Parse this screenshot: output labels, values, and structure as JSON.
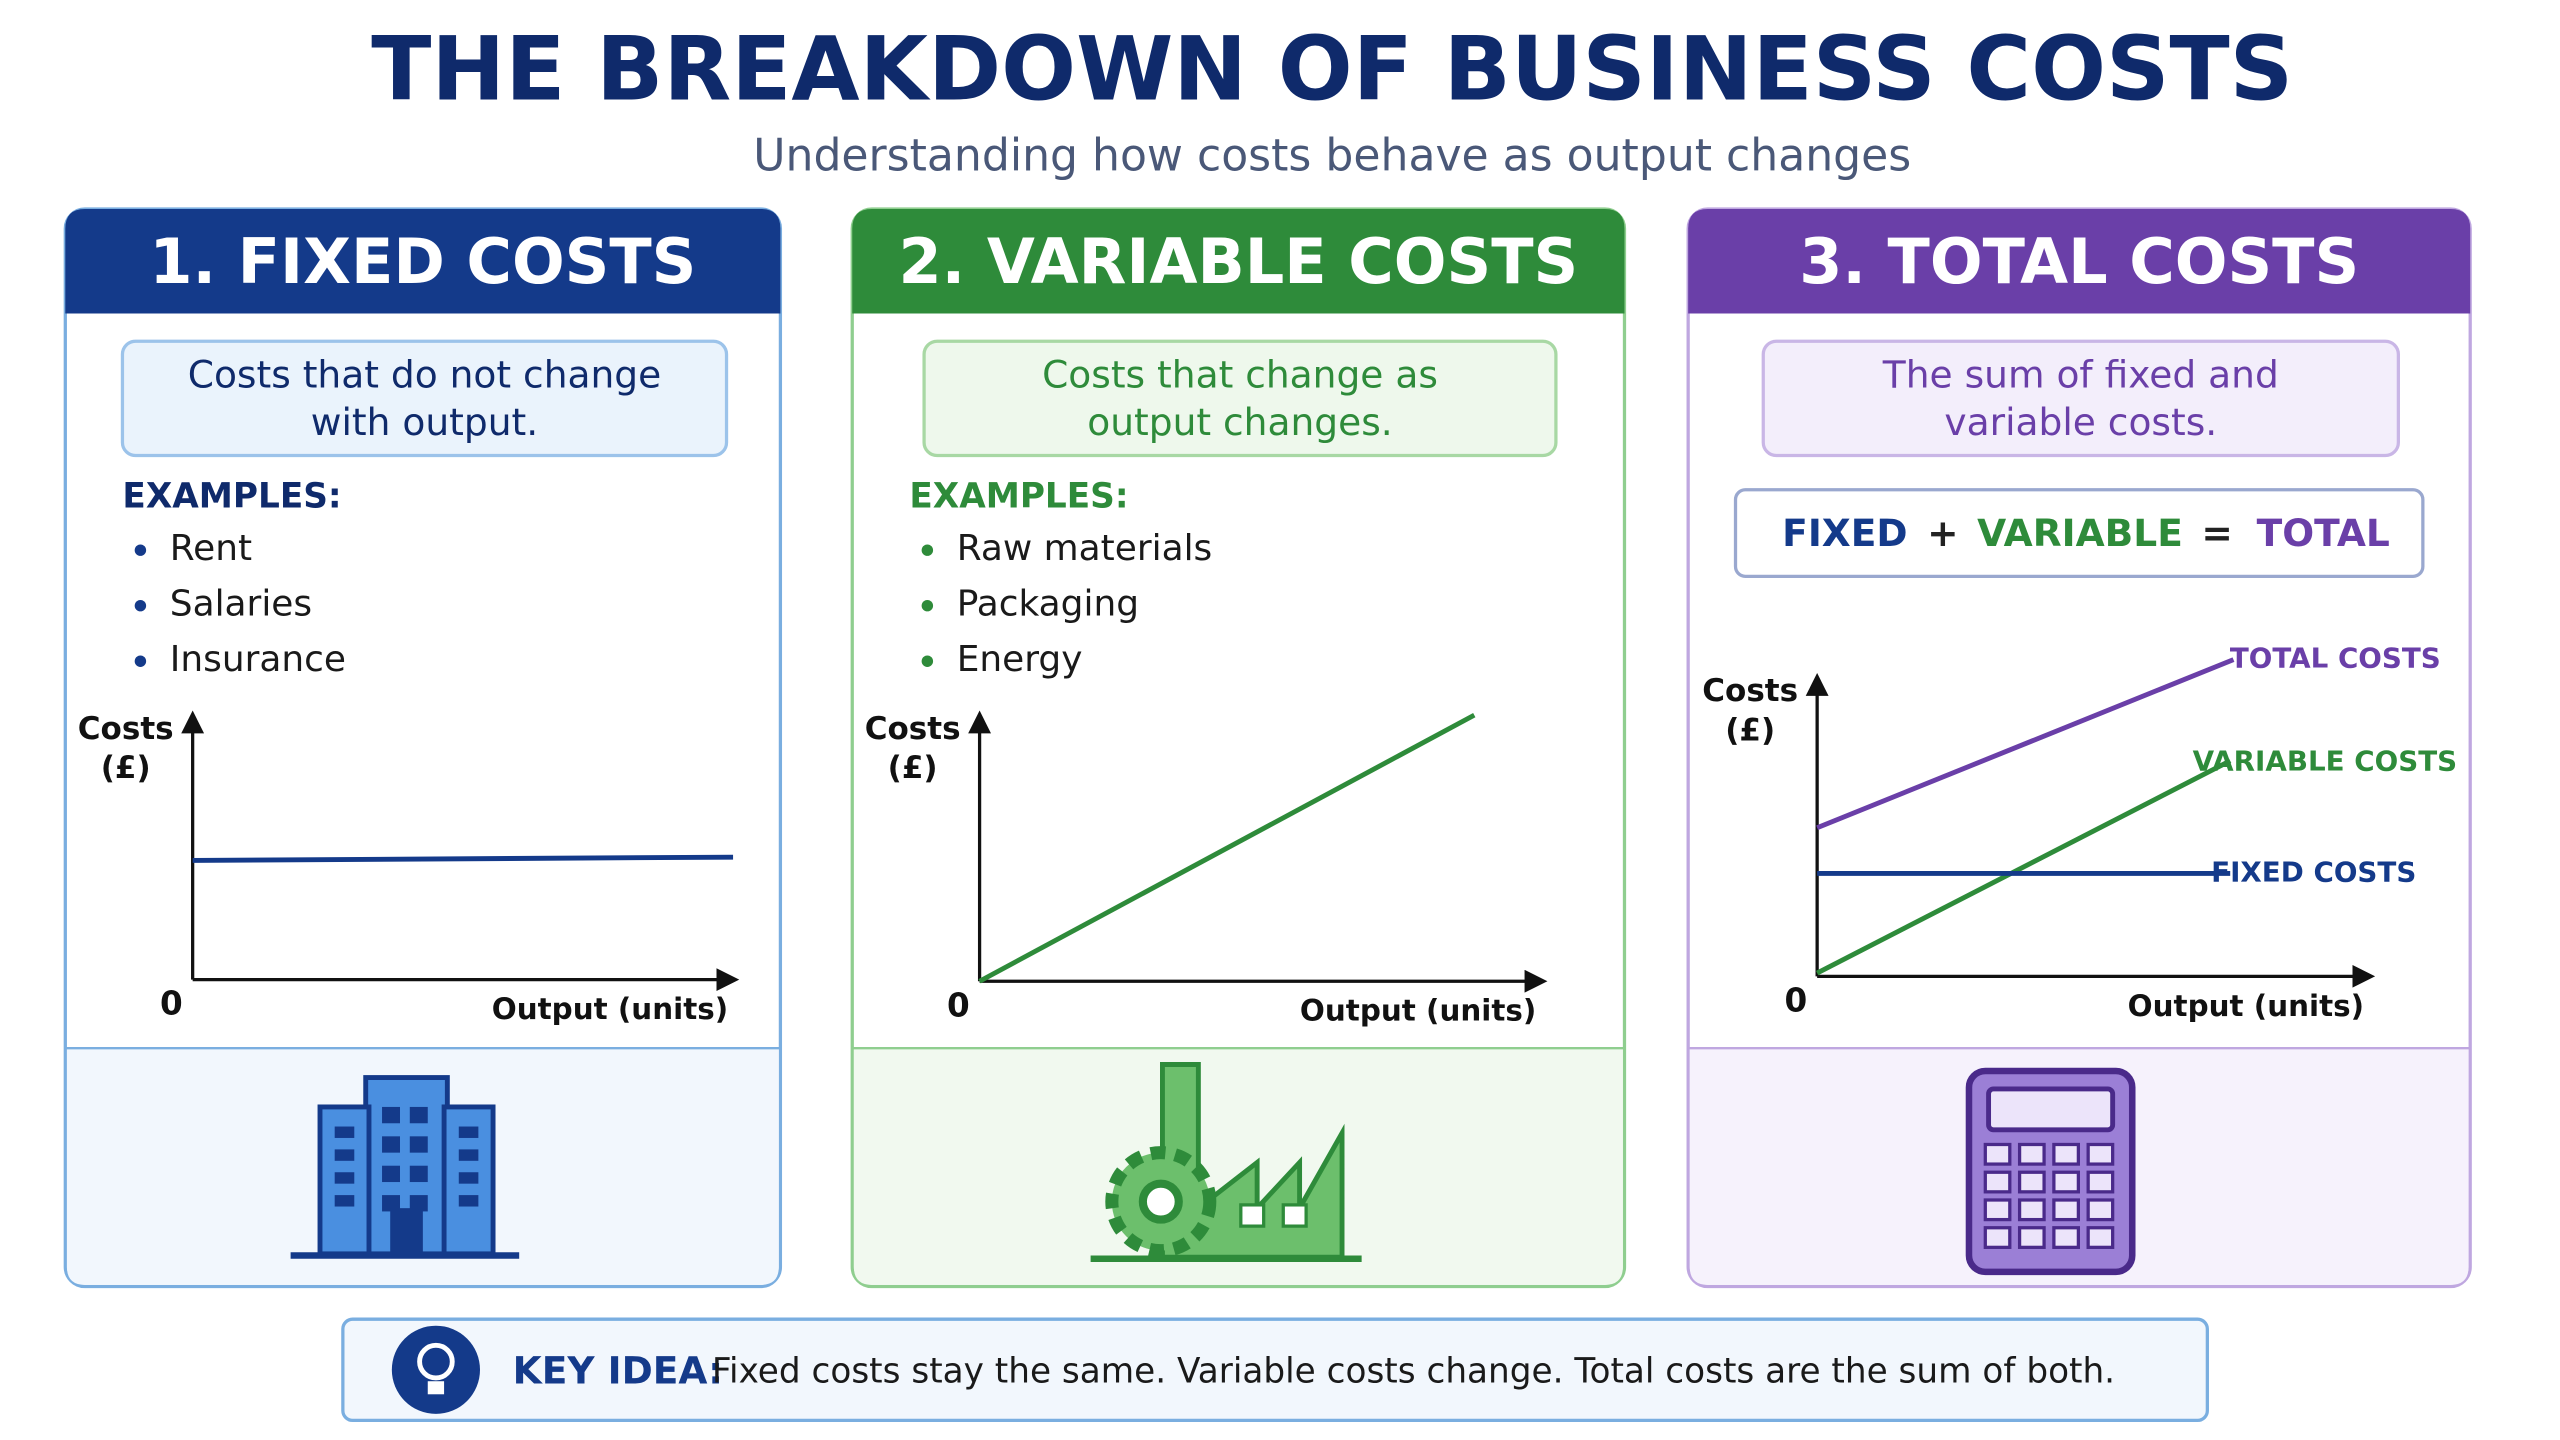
{
  "header": {
    "title": "THE BREAKDOWN OF BUSINESS COSTS",
    "subtitle": "Understanding how costs behave as output changes"
  },
  "panels": [
    {
      "heading": "1. FIXED COSTS",
      "definition": [
        "Costs that do not change",
        "with output."
      ],
      "examples_label": "EXAMPLES:",
      "examples": [
        "Rent",
        "Salaries",
        "Insurance"
      ],
      "graph": {
        "y_label": [
          "Costs",
          "(£)"
        ],
        "origin": "0",
        "x_label": "Output (units)"
      }
    },
    {
      "heading": "2. VARIABLE COSTS",
      "definition": [
        "Costs that change as",
        "output changes."
      ],
      "examples_label": "EXAMPLES:",
      "examples": [
        "Raw materials",
        "Packaging",
        "Energy"
      ],
      "graph": {
        "y_label": [
          "Costs",
          "(£)"
        ],
        "origin": "0",
        "x_label": "Output (units)"
      }
    },
    {
      "heading": "3. TOTAL COSTS",
      "definition": [
        "The sum of fixed and",
        "variable costs."
      ],
      "equation": {
        "fixed": "FIXED",
        "plus": "+",
        "variable": "VARIABLE",
        "equals": "=",
        "total": "TOTAL"
      },
      "graph": {
        "y_label": [
          "Costs",
          "(£)"
        ],
        "origin": "0",
        "x_label": "Output (units)",
        "line_labels": {
          "total": "TOTAL COSTS",
          "variable": "VARIABLE COSTS",
          "fixed": "FIXED COSTS"
        }
      }
    }
  ],
  "key_idea": {
    "label": "KEY IDEA:",
    "text": "Fixed costs stay the same. Variable costs change. Total costs are the sum of both."
  }
}
